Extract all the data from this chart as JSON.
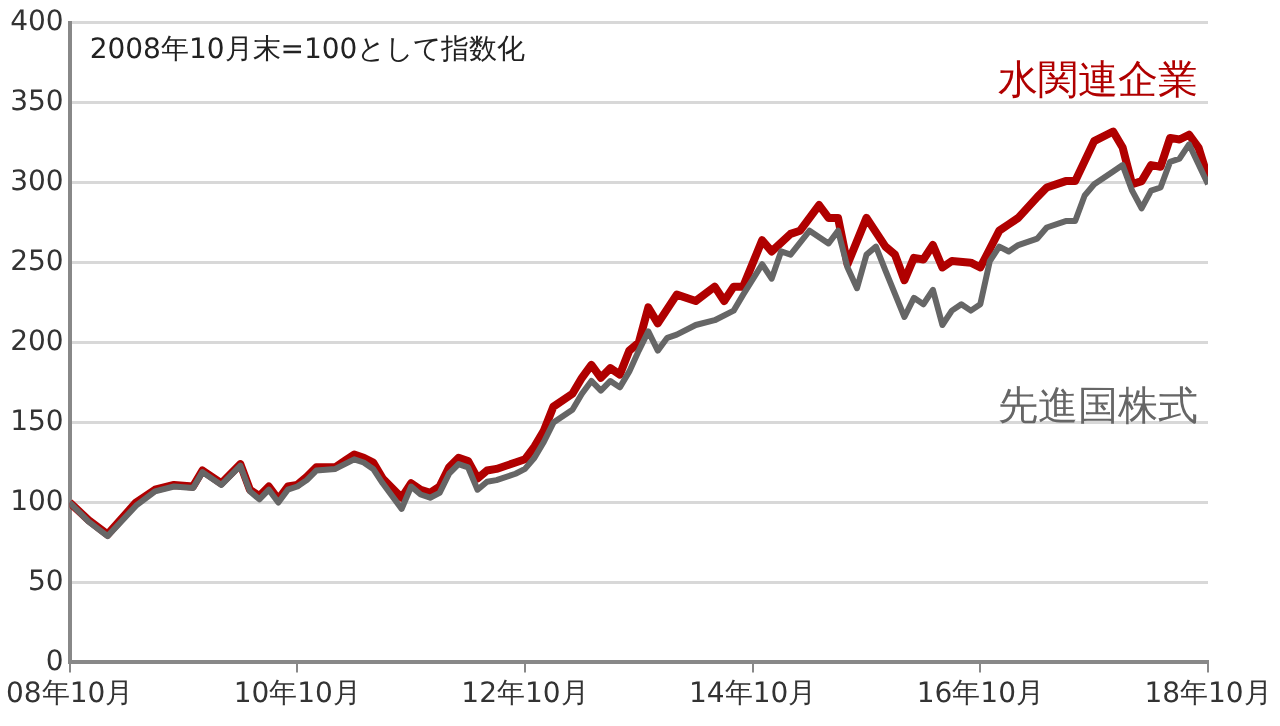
{
  "chart_data": {
    "type": "line",
    "annotations": [
      "2008年10月末=100として指数化"
    ],
    "xlim": [
      "2008-10",
      "2018-10"
    ],
    "xticks": [
      {
        "value": "2008-10",
        "label": "08年10月"
      },
      {
        "value": "2010-10",
        "label": "10年10月"
      },
      {
        "value": "2012-10",
        "label": "12年10月"
      },
      {
        "value": "2014-10",
        "label": "14年10月"
      },
      {
        "value": "2016-10",
        "label": "16年10月"
      },
      {
        "value": "2018-10",
        "label": "18年10月"
      }
    ],
    "ylim": [
      0,
      400
    ],
    "yticks": [
      0,
      50,
      100,
      150,
      200,
      250,
      300,
      350,
      400
    ],
    "grid": "y",
    "legend": false,
    "marker": "none",
    "line_style": "solid",
    "series": [
      {
        "name": "先進国株式",
        "color": "#666666",
        "x": [
          "2008-10",
          "2008-12",
          "2009-02",
          "2009-05",
          "2009-07",
          "2009-09",
          "2009-11",
          "2009-12",
          "2010-02",
          "2010-04",
          "2010-05",
          "2010-06",
          "2010-07",
          "2010-08",
          "2010-09",
          "2010-10",
          "2010-11",
          "2010-12",
          "2011-02",
          "2011-03",
          "2011-04",
          "2011-05",
          "2011-06",
          "2011-07",
          "2011-09",
          "2011-10",
          "2011-11",
          "2011-12",
          "2012-01",
          "2012-02",
          "2012-03",
          "2012-04",
          "2012-05",
          "2012-06",
          "2012-07",
          "2012-09",
          "2012-10",
          "2012-11",
          "2012-12",
          "2013-01",
          "2013-03",
          "2013-04",
          "2013-05",
          "2013-06",
          "2013-07",
          "2013-08",
          "2013-09",
          "2013-10",
          "2013-11",
          "2013-12",
          "2014-01",
          "2014-02",
          "2014-04",
          "2014-06",
          "2014-08",
          "2014-09",
          "2014-11",
          "2014-12",
          "2015-01",
          "2015-02",
          "2015-04",
          "2015-06",
          "2015-07",
          "2015-08",
          "2015-09",
          "2015-10",
          "2015-11",
          "2015-12",
          "2016-02",
          "2016-03",
          "2016-04",
          "2016-05",
          "2016-06",
          "2016-07",
          "2016-08",
          "2016-09",
          "2016-10",
          "2016-11",
          "2016-12",
          "2017-01",
          "2017-02",
          "2017-04",
          "2017-05",
          "2017-07",
          "2017-08",
          "2017-09",
          "2017-10",
          "2017-12",
          "2018-01",
          "2018-02",
          "2018-03",
          "2018-04",
          "2018-05",
          "2018-06",
          "2018-07",
          "2018-08",
          "2018-10"
        ],
        "values": [
          100,
          88,
          79,
          98,
          107,
          110,
          109,
          119,
          111,
          123,
          107,
          102,
          108,
          100,
          108,
          110,
          114,
          120,
          121,
          124,
          127,
          125,
          121,
          112,
          96,
          110,
          105,
          103,
          106,
          118,
          124,
          122,
          108,
          113,
          114,
          118,
          121,
          128,
          138,
          150,
          158,
          168,
          176,
          170,
          176,
          172,
          182,
          195,
          207,
          195,
          203,
          205,
          211,
          214,
          220,
          230,
          249,
          240,
          257,
          255,
          270,
          262,
          270,
          247,
          234,
          255,
          260,
          245,
          216,
          228,
          224,
          233,
          211,
          220,
          224,
          220,
          224,
          251,
          260,
          257,
          261,
          265,
          272,
          276,
          276,
          292,
          299,
          307,
          311,
          295,
          284,
          295,
          297,
          313,
          315,
          324,
          299
        ]
      },
      {
        "name": "水関連企業",
        "color": "#b00000",
        "x": [
          "2008-10",
          "2008-12",
          "2009-02",
          "2009-05",
          "2009-07",
          "2009-09",
          "2009-11",
          "2009-12",
          "2010-02",
          "2010-04",
          "2010-05",
          "2010-06",
          "2010-07",
          "2010-08",
          "2010-09",
          "2010-10",
          "2010-11",
          "2010-12",
          "2011-02",
          "2011-03",
          "2011-04",
          "2011-05",
          "2011-06",
          "2011-07",
          "2011-09",
          "2011-10",
          "2011-11",
          "2011-12",
          "2012-01",
          "2012-02",
          "2012-03",
          "2012-04",
          "2012-05",
          "2012-06",
          "2012-07",
          "2012-09",
          "2012-10",
          "2012-11",
          "2012-12",
          "2013-01",
          "2013-03",
          "2013-04",
          "2013-05",
          "2013-06",
          "2013-07",
          "2013-08",
          "2013-09",
          "2013-10",
          "2013-11",
          "2013-12",
          "2014-02",
          "2014-04",
          "2014-06",
          "2014-07",
          "2014-08",
          "2014-09",
          "2014-11",
          "2014-12",
          "2015-02",
          "2015-03",
          "2015-05",
          "2015-06",
          "2015-07",
          "2015-08",
          "2015-10",
          "2015-12",
          "2016-01",
          "2016-02",
          "2016-03",
          "2016-04",
          "2016-05",
          "2016-06",
          "2016-07",
          "2016-09",
          "2016-10",
          "2016-12",
          "2017-01",
          "2017-02",
          "2017-04",
          "2017-05",
          "2017-07",
          "2017-08",
          "2017-10",
          "2017-12",
          "2018-01",
          "2018-02",
          "2018-03",
          "2018-04",
          "2018-05",
          "2018-06",
          "2018-07",
          "2018-08",
          "2018-09",
          "2018-10"
        ],
        "values": [
          100,
          89,
          80,
          100,
          108,
          111,
          110,
          120,
          112,
          124,
          108,
          104,
          110,
          102,
          110,
          111,
          116,
          122,
          122,
          126,
          130,
          128,
          125,
          115,
          103,
          112,
          108,
          106,
          110,
          122,
          128,
          126,
          115,
          120,
          121,
          125,
          127,
          135,
          145,
          160,
          168,
          178,
          186,
          178,
          184,
          180,
          195,
          200,
          222,
          212,
          230,
          226,
          235,
          226,
          235,
          235,
          264,
          257,
          268,
          270,
          286,
          278,
          278,
          249,
          278,
          260,
          255,
          239,
          253,
          252,
          261,
          247,
          251,
          250,
          247,
          270,
          274,
          278,
          291,
          297,
          301,
          301,
          326,
          332,
          322,
          299,
          301,
          311,
          310,
          328,
          327,
          330,
          322,
          303
        ]
      }
    ]
  }
}
